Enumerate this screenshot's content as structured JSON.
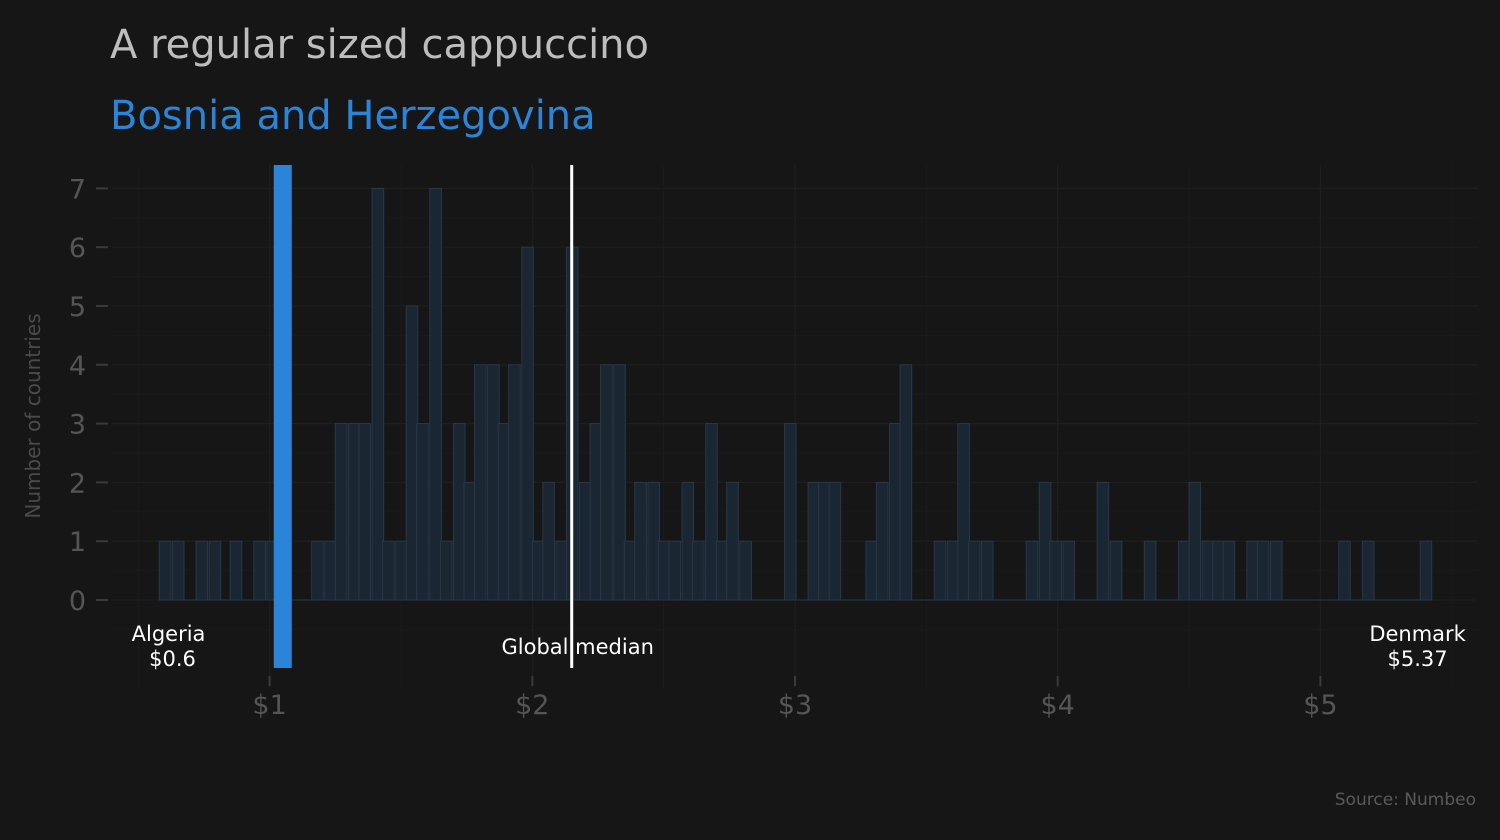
{
  "title": "A regular sized cappuccino",
  "subtitle": "Bosnia and Herzegovina",
  "source": "Source: Numbeo",
  "colors": {
    "background": "#161616",
    "highlight": "#2a85d8",
    "bars_fill": "#1a2632",
    "bars_stroke": "#26384a",
    "median_line": "#ffffff",
    "grid": "#1d1d1d"
  },
  "chart_data": {
    "type": "bar",
    "ylabel": "Number of countries",
    "xlabel": "",
    "xlim": [
      0.4,
      5.6
    ],
    "ylim": [
      0,
      7.4
    ],
    "x_tick_values": [
      1,
      2,
      3,
      4,
      5
    ],
    "x_tick_labels": [
      "$1",
      "$2",
      "$3",
      "$4",
      "$5"
    ],
    "y_tick_values": [
      0,
      1,
      2,
      3,
      4,
      5,
      6,
      7
    ],
    "y_tick_labels": [
      "0",
      "1",
      "2",
      "3",
      "4",
      "5",
      "6",
      "7"
    ],
    "bin_width": 0.044,
    "bins": [
      [
        0.58,
        1
      ],
      [
        0.63,
        1
      ],
      [
        0.72,
        1
      ],
      [
        0.77,
        1
      ],
      [
        0.85,
        1
      ],
      [
        0.94,
        1
      ],
      [
        0.99,
        1
      ],
      [
        1.16,
        1
      ],
      [
        1.21,
        1
      ],
      [
        1.25,
        3
      ],
      [
        1.3,
        3
      ],
      [
        1.34,
        3
      ],
      [
        1.39,
        7
      ],
      [
        1.43,
        1
      ],
      [
        1.48,
        1
      ],
      [
        1.52,
        5
      ],
      [
        1.56,
        3
      ],
      [
        1.61,
        7
      ],
      [
        1.65,
        1
      ],
      [
        1.7,
        3
      ],
      [
        1.74,
        2
      ],
      [
        1.78,
        4
      ],
      [
        1.83,
        4
      ],
      [
        1.87,
        3
      ],
      [
        1.91,
        4
      ],
      [
        1.96,
        6
      ],
      [
        2.0,
        1
      ],
      [
        2.04,
        2
      ],
      [
        2.09,
        1
      ],
      [
        2.13,
        6
      ],
      [
        2.18,
        2
      ],
      [
        2.22,
        3
      ],
      [
        2.26,
        4
      ],
      [
        2.31,
        4
      ],
      [
        2.35,
        1
      ],
      [
        2.39,
        2
      ],
      [
        2.44,
        2
      ],
      [
        2.48,
        1
      ],
      [
        2.52,
        1
      ],
      [
        2.57,
        2
      ],
      [
        2.61,
        1
      ],
      [
        2.66,
        3
      ],
      [
        2.7,
        1
      ],
      [
        2.74,
        2
      ],
      [
        2.79,
        1
      ],
      [
        2.96,
        3
      ],
      [
        3.05,
        2
      ],
      [
        3.09,
        2
      ],
      [
        3.13,
        2
      ],
      [
        3.27,
        1
      ],
      [
        3.31,
        2
      ],
      [
        3.36,
        3
      ],
      [
        3.4,
        4
      ],
      [
        3.53,
        1
      ],
      [
        3.58,
        1
      ],
      [
        3.62,
        3
      ],
      [
        3.66,
        1
      ],
      [
        3.71,
        1
      ],
      [
        3.88,
        1
      ],
      [
        3.93,
        2
      ],
      [
        3.97,
        1
      ],
      [
        4.02,
        1
      ],
      [
        4.15,
        2
      ],
      [
        4.2,
        1
      ],
      [
        4.33,
        1
      ],
      [
        4.46,
        1
      ],
      [
        4.5,
        2
      ],
      [
        4.55,
        1
      ],
      [
        4.59,
        1
      ],
      [
        4.63,
        1
      ],
      [
        4.72,
        1
      ],
      [
        4.76,
        1
      ],
      [
        4.81,
        1
      ],
      [
        5.07,
        1
      ],
      [
        5.16,
        1
      ],
      [
        5.38,
        1
      ]
    ],
    "highlight": {
      "country": "Bosnia and Herzegovina",
      "value": 1.05
    },
    "median": {
      "value": 2.15,
      "label": "Global median"
    },
    "min": {
      "country": "Algeria",
      "label": "$0.6",
      "value": 0.6
    },
    "max": {
      "country": "Denmark",
      "label": "$5.37",
      "value": 5.37
    }
  }
}
